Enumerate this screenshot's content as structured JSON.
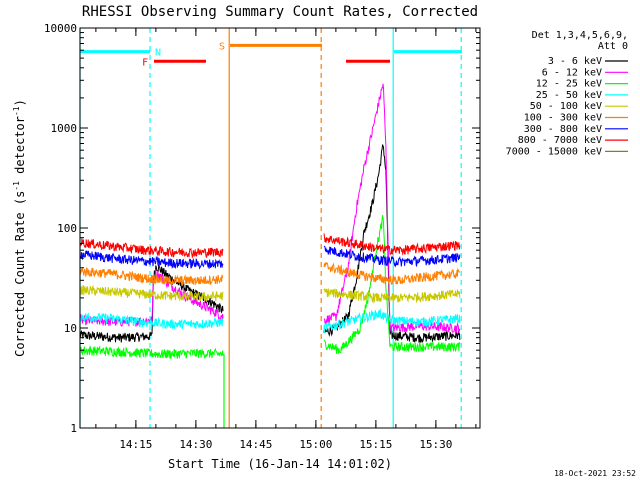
{
  "chart_data": {
    "type": "line",
    "title": "RHESSI Observing Summary Count Rates, Corrected",
    "xlabel": "Start Time (16-Jan-14 14:01:02)",
    "ylabel_text": "Corrected Count Rate (s",
    "ylabel_sup1": "-1",
    "ylabel_mid": " detector",
    "ylabel_sup2": "-1",
    "ylabel_end": ")",
    "y_scale": "log",
    "ylim": [
      1,
      10000
    ],
    "xlim_minutes": [
      0,
      100
    ],
    "yticks": [
      {
        "value": 1,
        "label": "1"
      },
      {
        "value": 10,
        "label": "10"
      },
      {
        "value": 100,
        "label": "100"
      },
      {
        "value": 1000,
        "label": "1000"
      },
      {
        "value": 10000,
        "label": "10000"
      }
    ],
    "xticks": [
      {
        "value": 13.97,
        "label": "14:15"
      },
      {
        "value": 28.97,
        "label": "14:30"
      },
      {
        "value": 43.97,
        "label": "14:45"
      },
      {
        "value": 58.97,
        "label": "15:00"
      },
      {
        "value": 73.97,
        "label": "15:15"
      },
      {
        "value": 88.97,
        "label": "15:30"
      }
    ],
    "legend_header": [
      "Det 1,3,4,5,6,9,",
      "Att 0"
    ],
    "legend_placement": "right",
    "series": [
      {
        "name": "3 - 6 keV",
        "color": "#000000",
        "seg1": [
          {
            "t": 0,
            "v": 8.5
          },
          {
            "t": 10,
            "v": 8
          },
          {
            "t": 18,
            "v": 8.3
          },
          {
            "t": 18.3,
            "v": 30
          },
          {
            "t": 19,
            "v": 42
          },
          {
            "t": 22,
            "v": 33
          },
          {
            "t": 27,
            "v": 24
          },
          {
            "t": 33,
            "v": 18
          },
          {
            "t": 35.8,
            "v": 15
          }
        ],
        "seg2": [
          {
            "t": 61,
            "v": 9
          },
          {
            "t": 64,
            "v": 10
          },
          {
            "t": 67,
            "v": 13
          },
          {
            "t": 69,
            "v": 30
          },
          {
            "t": 71,
            "v": 90
          },
          {
            "t": 73,
            "v": 170
          },
          {
            "t": 74.7,
            "v": 350
          },
          {
            "t": 75.8,
            "v": 700
          },
          {
            "t": 76.5,
            "v": 350
          },
          {
            "t": 77.5,
            "v": 8.5
          },
          {
            "t": 85,
            "v": 8
          },
          {
            "t": 95,
            "v": 8.5
          }
        ]
      },
      {
        "name": "6 - 12 keV",
        "color": "#ff00ff",
        "seg1": [
          {
            "t": 0,
            "v": 12
          },
          {
            "t": 10,
            "v": 11.5
          },
          {
            "t": 18,
            "v": 12
          },
          {
            "t": 18.3,
            "v": 28
          },
          {
            "t": 19,
            "v": 36
          },
          {
            "t": 22,
            "v": 28
          },
          {
            "t": 27,
            "v": 20
          },
          {
            "t": 33,
            "v": 15
          },
          {
            "t": 35.8,
            "v": 13
          }
        ],
        "seg2": [
          {
            "t": 61,
            "v": 12
          },
          {
            "t": 64,
            "v": 13
          },
          {
            "t": 67,
            "v": 40
          },
          {
            "t": 69,
            "v": 150
          },
          {
            "t": 71,
            "v": 400
          },
          {
            "t": 73,
            "v": 900
          },
          {
            "t": 74.7,
            "v": 1800
          },
          {
            "t": 75.8,
            "v": 2800
          },
          {
            "t": 76.5,
            "v": 600
          },
          {
            "t": 77.5,
            "v": 10
          },
          {
            "t": 85,
            "v": 10.5
          },
          {
            "t": 95,
            "v": 10
          }
        ]
      },
      {
        "name": "12 - 25 keV",
        "color": "#00ff00",
        "seg1": [
          {
            "t": 0,
            "v": 6
          },
          {
            "t": 10,
            "v": 5.8
          },
          {
            "t": 20,
            "v": 5.5
          },
          {
            "t": 30,
            "v": 5.6
          },
          {
            "t": 35.8,
            "v": 5.5
          }
        ],
        "seg2": [
          {
            "t": 61,
            "v": 7
          },
          {
            "t": 65,
            "v": 6
          },
          {
            "t": 68,
            "v": 8
          },
          {
            "t": 70,
            "v": 10
          },
          {
            "t": 72,
            "v": 20
          },
          {
            "t": 74,
            "v": 60
          },
          {
            "t": 75.8,
            "v": 130
          },
          {
            "t": 76.5,
            "v": 25
          },
          {
            "t": 77.5,
            "v": 6.5
          },
          {
            "t": 85,
            "v": 6.5
          },
          {
            "t": 95,
            "v": 6.5
          }
        ]
      },
      {
        "name": "25 - 50 keV",
        "color": "#00ffff",
        "seg1": [
          {
            "t": 0,
            "v": 13
          },
          {
            "t": 8,
            "v": 12.5
          },
          {
            "t": 15,
            "v": 11.5
          },
          {
            "t": 22,
            "v": 11
          },
          {
            "t": 30,
            "v": 11
          },
          {
            "t": 35.8,
            "v": 11.5
          }
        ],
        "seg2": [
          {
            "t": 61,
            "v": 10
          },
          {
            "t": 65,
            "v": 11
          },
          {
            "t": 70,
            "v": 12.5
          },
          {
            "t": 75,
            "v": 14
          },
          {
            "t": 77.5,
            "v": 12
          },
          {
            "t": 85,
            "v": 11.5
          },
          {
            "t": 95,
            "v": 12.5
          }
        ]
      },
      {
        "name": "50 - 100 keV",
        "color": "#c8c800",
        "seg1": [
          {
            "t": 0,
            "v": 24
          },
          {
            "t": 8,
            "v": 23
          },
          {
            "t": 15,
            "v": 22
          },
          {
            "t": 22,
            "v": 21
          },
          {
            "t": 30,
            "v": 20.5
          },
          {
            "t": 35.8,
            "v": 21
          }
        ],
        "seg2": [
          {
            "t": 61,
            "v": 23
          },
          {
            "t": 65,
            "v": 22
          },
          {
            "t": 70,
            "v": 21
          },
          {
            "t": 75,
            "v": 20
          },
          {
            "t": 80,
            "v": 20
          },
          {
            "t": 88,
            "v": 21
          },
          {
            "t": 95,
            "v": 22
          }
        ]
      },
      {
        "name": "100 - 300 keV",
        "color": "#ff7f00",
        "seg1": [
          {
            "t": 0,
            "v": 37
          },
          {
            "t": 8,
            "v": 35
          },
          {
            "t": 15,
            "v": 32
          },
          {
            "t": 22,
            "v": 30
          },
          {
            "t": 30,
            "v": 30
          },
          {
            "t": 35.8,
            "v": 31
          }
        ],
        "seg2": [
          {
            "t": 61,
            "v": 42
          },
          {
            "t": 65,
            "v": 38
          },
          {
            "t": 70,
            "v": 34
          },
          {
            "t": 75,
            "v": 31
          },
          {
            "t": 80,
            "v": 30
          },
          {
            "t": 88,
            "v": 33
          },
          {
            "t": 95,
            "v": 35
          }
        ]
      },
      {
        "name": "300 - 800 keV",
        "color": "#0000ff",
        "seg1": [
          {
            "t": 0,
            "v": 55
          },
          {
            "t": 8,
            "v": 50
          },
          {
            "t": 15,
            "v": 47
          },
          {
            "t": 22,
            "v": 45
          },
          {
            "t": 30,
            "v": 44
          },
          {
            "t": 35.8,
            "v": 44
          }
        ],
        "seg2": [
          {
            "t": 61,
            "v": 62
          },
          {
            "t": 65,
            "v": 57
          },
          {
            "t": 70,
            "v": 52
          },
          {
            "t": 75,
            "v": 48
          },
          {
            "t": 80,
            "v": 46
          },
          {
            "t": 88,
            "v": 48
          },
          {
            "t": 95,
            "v": 51
          }
        ]
      },
      {
        "name": "800 - 7000 keV",
        "color": "#ff0000",
        "seg1": [
          {
            "t": 0,
            "v": 72
          },
          {
            "t": 8,
            "v": 66
          },
          {
            "t": 15,
            "v": 61
          },
          {
            "t": 22,
            "v": 58
          },
          {
            "t": 30,
            "v": 57
          },
          {
            "t": 35.8,
            "v": 58
          }
        ],
        "seg2": [
          {
            "t": 61,
            "v": 80
          },
          {
            "t": 65,
            "v": 74
          },
          {
            "t": 70,
            "v": 68
          },
          {
            "t": 75,
            "v": 62
          },
          {
            "t": 80,
            "v": 60
          },
          {
            "t": 88,
            "v": 64
          },
          {
            "t": 95,
            "v": 68
          }
        ]
      },
      {
        "name": "7000 - 15000 keV",
        "color": "#6b8e23",
        "seg1": [],
        "seg2": []
      }
    ],
    "flags": [
      {
        "label": "N",
        "color": "#00ffff",
        "y": 5800,
        "segments": [
          [
            0,
            17.5
          ],
          [
            78.5,
            95.5
          ]
        ],
        "label_t": 19.5
      },
      {
        "label": "F",
        "color": "#ff0000",
        "y": 4650,
        "segments": [
          [
            18.5,
            31.5
          ],
          [
            66.5,
            77.5
          ]
        ],
        "label_t": 16.3
      },
      {
        "label": "S",
        "color": "#ff7f00",
        "y": 6700,
        "segments": [
          [
            37.5,
            60.5
          ]
        ],
        "label_t": 35.5
      }
    ],
    "vertical_markers": [
      {
        "t": 0,
        "color": "#00ffff",
        "style": "solid"
      },
      {
        "t": 17.5,
        "color": "#00ffff",
        "style": "dashed"
      },
      {
        "t": 37.3,
        "color": "#ff7f00",
        "style": "solid"
      },
      {
        "t": 60.3,
        "color": "#ff7f00",
        "style": "dashed"
      },
      {
        "t": 78.3,
        "color": "#00ffff",
        "style": "solid"
      },
      {
        "t": 95.3,
        "color": "#00ffff",
        "style": "dashed"
      }
    ],
    "gaps": [
      {
        "t": 36.0,
        "color": "#00ff00",
        "to_value": 1
      }
    ]
  },
  "timestamp": "18-Oct-2021 23:52"
}
